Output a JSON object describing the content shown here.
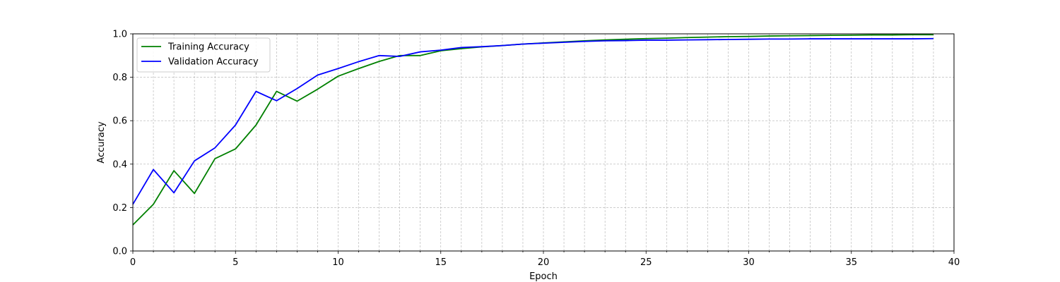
{
  "chart_data": {
    "type": "line",
    "title": "",
    "xlabel": "Epoch",
    "ylabel": "Accuracy",
    "xlim": [
      0,
      40
    ],
    "ylim": [
      0,
      1.0
    ],
    "xticks": [
      "0",
      "5",
      "10",
      "15",
      "20",
      "25",
      "30",
      "35",
      "40"
    ],
    "yticks": [
      "0.0",
      "0.2",
      "0.4",
      "0.6",
      "0.8",
      "1.0"
    ],
    "grid": true,
    "minor_grid": true,
    "legend_position": "top-left",
    "x": [
      0,
      1,
      2,
      3,
      4,
      5,
      6,
      7,
      8,
      9,
      10,
      11,
      12,
      13,
      14,
      15,
      16,
      17,
      18,
      19,
      20,
      21,
      22,
      23,
      24,
      25,
      26,
      27,
      28,
      29,
      30,
      31,
      32,
      33,
      34,
      35,
      36,
      37,
      38,
      39
    ],
    "series": [
      {
        "name": "Training Accuracy",
        "color": "#008000",
        "values": [
          0.12,
          0.215,
          0.37,
          0.265,
          0.425,
          0.47,
          0.58,
          0.735,
          0.69,
          0.745,
          0.805,
          0.84,
          0.873,
          0.9,
          0.9,
          0.922,
          0.932,
          0.94,
          0.946,
          0.953,
          0.958,
          0.963,
          0.968,
          0.972,
          0.975,
          0.978,
          0.98,
          0.983,
          0.985,
          0.987,
          0.988,
          0.99,
          0.991,
          0.992,
          0.993,
          0.994,
          0.995,
          0.995,
          0.996,
          0.996
        ]
      },
      {
        "name": "Validation Accuracy",
        "color": "#0000ff",
        "values": [
          0.215,
          0.375,
          0.268,
          0.415,
          0.475,
          0.58,
          0.735,
          0.692,
          0.748,
          0.81,
          0.84,
          0.872,
          0.9,
          0.896,
          0.917,
          0.925,
          0.937,
          0.941,
          0.946,
          0.953,
          0.957,
          0.961,
          0.965,
          0.968,
          0.969,
          0.971,
          0.971,
          0.972,
          0.973,
          0.974,
          0.975,
          0.976,
          0.976,
          0.977,
          0.977,
          0.977,
          0.977,
          0.977,
          0.977,
          0.978
        ]
      }
    ]
  }
}
